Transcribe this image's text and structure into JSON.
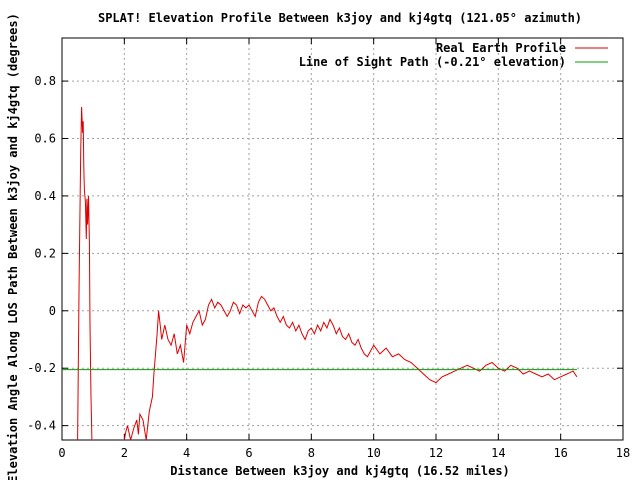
{
  "chart_data": {
    "type": "line",
    "title": "SPLAT! Elevation Profile Between k3joy and kj4gtq (121.05° azimuth)",
    "xlabel": "Distance Between k3joy and kj4gtq (16.52 miles)",
    "ylabel": "Elevation Angle Along LOS Path Between k3joy and kj4gtq (degrees)",
    "xlim": [
      0,
      18
    ],
    "ylim": [
      -0.45,
      0.95
    ],
    "xticks": [
      0,
      2,
      4,
      6,
      8,
      10,
      12,
      14,
      16,
      18
    ],
    "yticks": [
      -0.4,
      -0.2,
      0,
      0.2,
      0.4,
      0.6,
      0.8
    ],
    "xtick_labels": [
      "0",
      "2",
      "4",
      "6",
      "8",
      "10",
      "12",
      "14",
      "16",
      "18"
    ],
    "ytick_labels": [
      "-0.4",
      "-0.2",
      "0",
      "0.2",
      "0.4",
      "0.6",
      "0.8"
    ],
    "grid": true,
    "legend_position": "top-right",
    "series": [
      {
        "name": "Real Earth Profile",
        "color": "#e00000",
        "x": [
          0.5,
          0.55,
          0.6,
          0.63,
          0.66,
          0.68,
          0.7,
          0.72,
          0.75,
          0.78,
          0.8,
          0.82,
          0.85,
          0.88,
          0.9,
          0.93,
          0.96,
          1.0
        ],
        "y": [
          -0.45,
          0.1,
          0.55,
          0.71,
          0.62,
          0.66,
          0.5,
          0.42,
          0.38,
          0.25,
          0.39,
          0.3,
          0.4,
          0.24,
          -0.05,
          -0.3,
          -0.45,
          -0.45
        ],
        "x2": [
          1.95,
          2.0,
          2.05,
          2.1,
          2.2,
          2.3,
          2.4,
          2.45,
          2.5,
          2.6,
          2.7,
          2.8,
          2.9,
          2.95,
          3.0,
          3.05,
          3.1,
          3.15,
          3.2,
          3.3,
          3.4,
          3.5,
          3.6,
          3.7,
          3.8,
          3.9,
          4.0,
          4.1,
          4.2,
          4.3,
          4.4,
          4.5,
          4.6,
          4.7,
          4.8,
          4.9,
          5.0,
          5.1,
          5.2,
          5.3,
          5.4,
          5.5,
          5.6,
          5.7,
          5.8,
          5.9,
          6.0,
          6.1,
          6.2,
          6.3,
          6.4,
          6.5,
          6.6,
          6.7,
          6.8,
          6.9,
          7.0,
          7.1,
          7.2,
          7.3,
          7.4,
          7.5,
          7.6,
          7.7,
          7.8,
          7.9,
          8.0,
          8.1,
          8.2,
          8.3,
          8.4,
          8.5,
          8.6,
          8.7,
          8.8,
          8.9,
          9.0,
          9.1,
          9.2,
          9.3,
          9.4,
          9.5,
          9.6,
          9.7,
          9.8,
          9.9,
          10.0,
          10.2,
          10.4,
          10.6,
          10.8,
          11.0,
          11.2,
          11.4,
          11.6,
          11.8,
          12.0,
          12.2,
          12.4,
          12.6,
          12.8,
          13.0,
          13.2,
          13.4,
          13.6,
          13.8,
          14.0,
          14.2,
          14.4,
          14.6,
          14.8,
          15.0,
          15.2,
          15.4,
          15.6,
          15.8,
          16.0,
          16.2,
          16.4,
          16.52
        ],
        "y2": [
          -0.45,
          -0.45,
          -0.42,
          -0.4,
          -0.45,
          -0.41,
          -0.38,
          -0.43,
          -0.36,
          -0.38,
          -0.45,
          -0.35,
          -0.3,
          -0.22,
          -0.15,
          -0.08,
          0.0,
          -0.05,
          -0.1,
          -0.05,
          -0.1,
          -0.12,
          -0.08,
          -0.15,
          -0.12,
          -0.18,
          -0.05,
          -0.08,
          -0.04,
          -0.02,
          0.0,
          -0.05,
          -0.03,
          0.02,
          0.04,
          0.01,
          0.03,
          0.02,
          0.0,
          -0.02,
          0.0,
          0.03,
          0.02,
          -0.01,
          0.02,
          0.01,
          0.02,
          0.0,
          -0.02,
          0.03,
          0.05,
          0.04,
          0.02,
          0.0,
          0.01,
          -0.02,
          -0.04,
          -0.02,
          -0.05,
          -0.06,
          -0.04,
          -0.07,
          -0.05,
          -0.08,
          -0.1,
          -0.07,
          -0.06,
          -0.08,
          -0.05,
          -0.07,
          -0.04,
          -0.06,
          -0.03,
          -0.05,
          -0.08,
          -0.06,
          -0.09,
          -0.1,
          -0.08,
          -0.11,
          -0.12,
          -0.1,
          -0.13,
          -0.15,
          -0.16,
          -0.14,
          -0.12,
          -0.15,
          -0.13,
          -0.16,
          -0.15,
          -0.17,
          -0.18,
          -0.2,
          -0.22,
          -0.24,
          -0.25,
          -0.23,
          -0.22,
          -0.21,
          -0.2,
          -0.19,
          -0.2,
          -0.21,
          -0.19,
          -0.18,
          -0.2,
          -0.21,
          -0.19,
          -0.2,
          -0.22,
          -0.21,
          -0.22,
          -0.23,
          -0.22,
          -0.24,
          -0.23,
          -0.22,
          -0.21,
          -0.23
        ]
      },
      {
        "name": "Line of Sight Path (-0.21° elevation)",
        "color": "#00a000",
        "x": [
          0,
          16.52
        ],
        "y": [
          -0.205,
          -0.205
        ]
      }
    ]
  }
}
